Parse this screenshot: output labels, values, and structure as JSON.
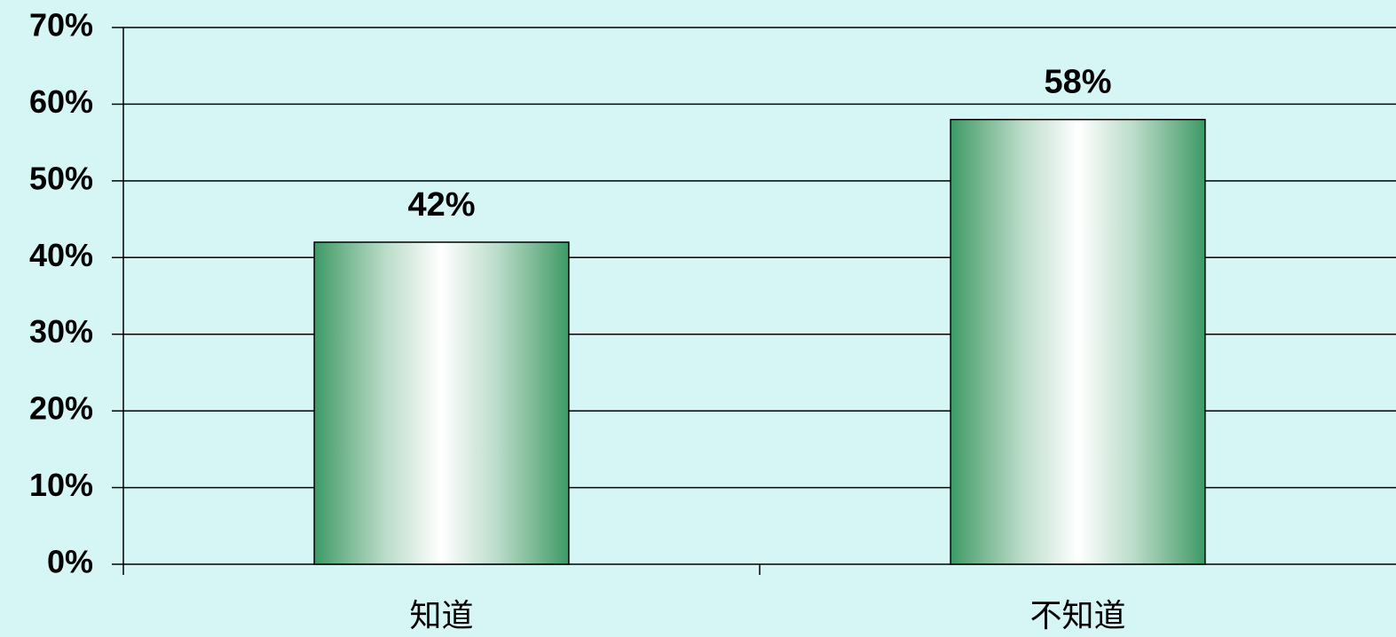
{
  "chart_data": {
    "type": "bar",
    "categories": [
      "知道",
      "不知道"
    ],
    "values": [
      42,
      58
    ],
    "value_labels": [
      "42%",
      "58%"
    ],
    "color": "#3a9a66",
    "ylim": [
      0,
      70
    ],
    "yticks": [
      {
        "value": 0,
        "label": "0%"
      },
      {
        "value": 10,
        "label": "10%"
      },
      {
        "value": 20,
        "label": "20%"
      },
      {
        "value": 30,
        "label": "30%"
      },
      {
        "value": 40,
        "label": "40%"
      },
      {
        "value": 50,
        "label": "50%"
      },
      {
        "value": 60,
        "label": "60%"
      },
      {
        "value": 70,
        "label": "70%"
      }
    ],
    "grid": true
  }
}
